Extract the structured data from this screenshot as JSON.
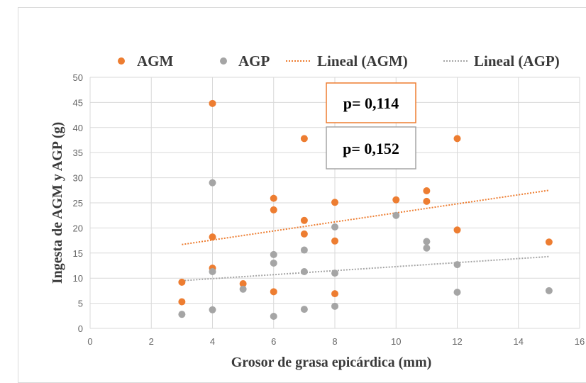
{
  "chart_data": {
    "type": "scatter",
    "xlabel": "Grosor de grasa epicárdica (mm)",
    "ylabel": "Ingesta de AGM y AGP (g)",
    "xlim": [
      0,
      16
    ],
    "ylim": [
      0,
      50
    ],
    "x_ticks": [
      "0",
      "2",
      "4",
      "6",
      "8",
      "10",
      "12",
      "14",
      "16"
    ],
    "y_ticks": [
      "0",
      "5",
      "10",
      "15",
      "20",
      "25",
      "30",
      "35",
      "40",
      "45",
      "50"
    ],
    "grid": "vertical and horizontal major gridlines",
    "legend_position": "top",
    "legend": [
      "AGM",
      "AGP",
      "Lineal (AGM)",
      "Lineal (AGP)"
    ],
    "series": [
      {
        "name": "AGM",
        "color": "#ed7d31",
        "points": [
          [
            3,
            9.2
          ],
          [
            3,
            5.3
          ],
          [
            4,
            44.8
          ],
          [
            4,
            18.2
          ],
          [
            4,
            12
          ],
          [
            5,
            8.9
          ],
          [
            6,
            25.9
          ],
          [
            6,
            23.6
          ],
          [
            6,
            7.3
          ],
          [
            7,
            37.8
          ],
          [
            7,
            21.5
          ],
          [
            7,
            18.8
          ],
          [
            8,
            25.1
          ],
          [
            8,
            17.4
          ],
          [
            8,
            6.9
          ],
          [
            10,
            25.6
          ],
          [
            11,
            27.4
          ],
          [
            11,
            25.3
          ],
          [
            12,
            37.8
          ],
          [
            12,
            19.6
          ],
          [
            15,
            17.2
          ]
        ]
      },
      {
        "name": "AGP",
        "color": "#a5a5a5",
        "points": [
          [
            3,
            2.8
          ],
          [
            4,
            29
          ],
          [
            4,
            11.3
          ],
          [
            4,
            3.7
          ],
          [
            5,
            7.8
          ],
          [
            6,
            14.7
          ],
          [
            6,
            13
          ],
          [
            6,
            2.4
          ],
          [
            7,
            15.6
          ],
          [
            7,
            11.3
          ],
          [
            7,
            3.8
          ],
          [
            8,
            20.2
          ],
          [
            8,
            11
          ],
          [
            8,
            4.4
          ],
          [
            10,
            22.5
          ],
          [
            11,
            17.3
          ],
          [
            11,
            16
          ],
          [
            12,
            12.7
          ],
          [
            12,
            7.2
          ],
          [
            15,
            7.5
          ]
        ]
      }
    ],
    "trendlines": [
      {
        "name": "Lineal (AGM)",
        "color": "#ed7d31",
        "from": [
          3,
          16.7
        ],
        "to": [
          15,
          27.5
        ]
      },
      {
        "name": "Lineal (AGP)",
        "color": "#a5a5a5",
        "from": [
          3,
          9.5
        ],
        "to": [
          15,
          14.3
        ]
      }
    ],
    "annotations": [
      {
        "text": "p= 0,114",
        "border_color": "#ed7d31"
      },
      {
        "text": "p= 0,152",
        "border_color": "#a5a5a5"
      }
    ]
  }
}
